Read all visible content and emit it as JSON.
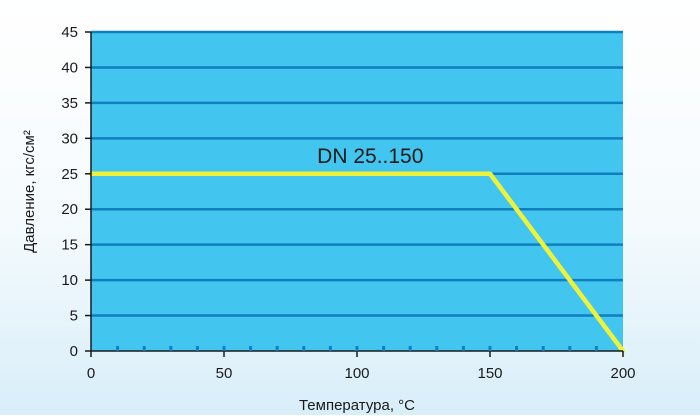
{
  "chart_data": {
    "type": "line",
    "title": "",
    "xlabel": "Температура, °C",
    "ylabel": "Давление, кгс/см²",
    "xlim": [
      0,
      200
    ],
    "ylim": [
      0,
      45
    ],
    "x_ticks": [
      0,
      50,
      100,
      150,
      200
    ],
    "y_ticks": [
      0,
      5,
      10,
      15,
      20,
      25,
      30,
      35,
      40,
      45
    ],
    "x_minor_step": 10,
    "grid": "horizontal",
    "legend": "none",
    "series": [
      {
        "x": [
          0,
          150,
          200
        ],
        "y": [
          25,
          25,
          0
        ],
        "color": "#eef23a"
      }
    ],
    "annotations": [
      {
        "text": "DN 25..150",
        "x": 105,
        "y": 25
      }
    ],
    "colors": {
      "plot_background": "#42c6f0",
      "gridline": "#0f7fc0",
      "axis": "#1a1a1a",
      "tick_minor": "#0f7fc0"
    }
  }
}
